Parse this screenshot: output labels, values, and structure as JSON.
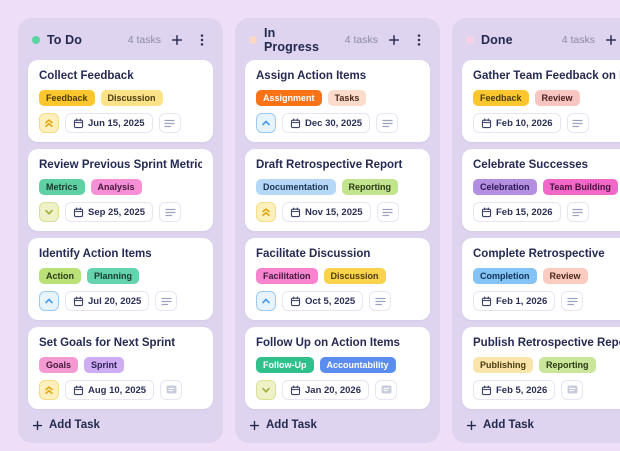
{
  "board": {
    "add_task_label": "Add Task",
    "colors": {
      "page_bg": "#efdef8",
      "column_bg": "#ded4ef",
      "card_bg": "#ffffff",
      "title_text": "#252a52",
      "count_text": "#8d8aa8"
    },
    "priority_styles": {
      "high": {
        "icon": "double-chevron-up-icon",
        "bg": "#fdf0bd",
        "border": "#f4dd86",
        "fg": "#dfa70e"
      },
      "medium": {
        "icon": "chevron-up-icon",
        "bg": "#e7f3fd",
        "border": "#9ccaf2",
        "fg": "#3f9bef"
      },
      "low": {
        "icon": "chevron-down-icon",
        "bg": "#eef2c6",
        "border": "#dade96",
        "fg": "#a3aa3e"
      }
    },
    "columns": [
      {
        "title": "To Do",
        "dot_color": "#5bd3a2",
        "count": "4 tasks",
        "cards": [
          {
            "title": "Collect Feedback",
            "tags": [
              {
                "label": "Feedback",
                "bg": "#fcc62e",
                "fg": "#4a3a10"
              },
              {
                "label": "Discussion",
                "bg": "#fbe288",
                "fg": "#4a3a10"
              }
            ],
            "priority": "high",
            "date": "Jun 15, 2025",
            "icon": "notes"
          },
          {
            "title": "Review Previous Sprint Metrics",
            "tags": [
              {
                "label": "Metrics",
                "bg": "#5ed0a4",
                "fg": "#173a2c"
              },
              {
                "label": "Analysis",
                "bg": "#f68fd5",
                "fg": "#45173a"
              }
            ],
            "priority": "low",
            "date": "Sep 25, 2025",
            "icon": "notes"
          },
          {
            "title": "Identify Action Items",
            "tags": [
              {
                "label": "Action",
                "bg": "#b9e178",
                "fg": "#2c3a14"
              },
              {
                "label": "Planning",
                "bg": "#65d3ad",
                "fg": "#173a2c"
              }
            ],
            "priority": "medium",
            "date": "Jul 20, 2025",
            "icon": "notes"
          },
          {
            "title": "Set Goals for Next Sprint",
            "tags": [
              {
                "label": "Goals",
                "bg": "#f49ad2",
                "fg": "#45173a"
              },
              {
                "label": "Sprint",
                "bg": "#cfadf2",
                "fg": "#2d2156"
              }
            ],
            "priority": "high",
            "date": "Aug 10, 2025",
            "icon": "comment"
          }
        ]
      },
      {
        "title": "In Progress",
        "dot_color": "#fbd8c3",
        "count": "4 tasks",
        "cards": [
          {
            "title": "Assign Action Items",
            "tags": [
              {
                "label": "Assignment",
                "bg": "#f97316",
                "fg": "#ffffff"
              },
              {
                "label": "Tasks",
                "bg": "#fbdccb",
                "fg": "#4a2717"
              }
            ],
            "priority": "medium",
            "date": "Dec 30, 2025",
            "icon": "notes"
          },
          {
            "title": "Draft Retrospective Report",
            "tags": [
              {
                "label": "Documentation",
                "bg": "#b6d8f8",
                "fg": "#1c3356"
              },
              {
                "label": "Reporting",
                "bg": "#c3e48f",
                "fg": "#2c3a14"
              }
            ],
            "priority": "high",
            "date": "Nov 15, 2025",
            "icon": "notes"
          },
          {
            "title": "Facilitate Discussion",
            "tags": [
              {
                "label": "Facilitation",
                "bg": "#f784cf",
                "fg": "#45173a"
              },
              {
                "label": "Discussion",
                "bg": "#fbd24c",
                "fg": "#4a3a10"
              }
            ],
            "priority": "medium",
            "date": "Oct 5, 2025",
            "icon": "notes"
          },
          {
            "title": "Follow Up on Action Items",
            "tags": [
              {
                "label": "Follow-Up",
                "bg": "#2fc08c",
                "fg": "#ffffff"
              },
              {
                "label": "Accountability",
                "bg": "#5b8cf0",
                "fg": "#ffffff"
              }
            ],
            "priority": "low",
            "date": "Jan 20, 2026",
            "icon": "comment"
          }
        ]
      },
      {
        "title": "Done",
        "dot_color": "#f7d2e7",
        "count": "4 tasks",
        "cards": [
          {
            "title": "Gather Team Feedback on Retrospective",
            "tags": [
              {
                "label": "Feedback",
                "bg": "#fcc62e",
                "fg": "#4a3a10"
              },
              {
                "label": "Review",
                "bg": "#f8c5c1",
                "fg": "#4a2020"
              }
            ],
            "priority": "none",
            "date": "Feb 10, 2026",
            "icon": "notes"
          },
          {
            "title": "Celebrate Successes",
            "tags": [
              {
                "label": "Celebration",
                "bg": "#b48ee1",
                "fg": "#2b1650"
              },
              {
                "label": "Team Building",
                "bg": "#f268c8",
                "fg": "#47103a"
              }
            ],
            "priority": "none",
            "date": "Feb 15, 2026",
            "icon": "notes"
          },
          {
            "title": "Complete Retrospective",
            "tags": [
              {
                "label": "Completion",
                "bg": "#84c3f3",
                "fg": "#13335a"
              },
              {
                "label": "Review",
                "bg": "#f9ccbf",
                "fg": "#4a2717"
              }
            ],
            "priority": "none",
            "date": "Feb 1, 2026",
            "icon": "notes"
          },
          {
            "title": "Publish Retrospective Report",
            "tags": [
              {
                "label": "Publishing",
                "bg": "#f9e5aa",
                "fg": "#4a3a10"
              },
              {
                "label": "Reporting",
                "bg": "#cae69b",
                "fg": "#2c3a14"
              }
            ],
            "priority": "none",
            "date": "Feb 5, 2026",
            "icon": "comment"
          }
        ]
      }
    ]
  }
}
